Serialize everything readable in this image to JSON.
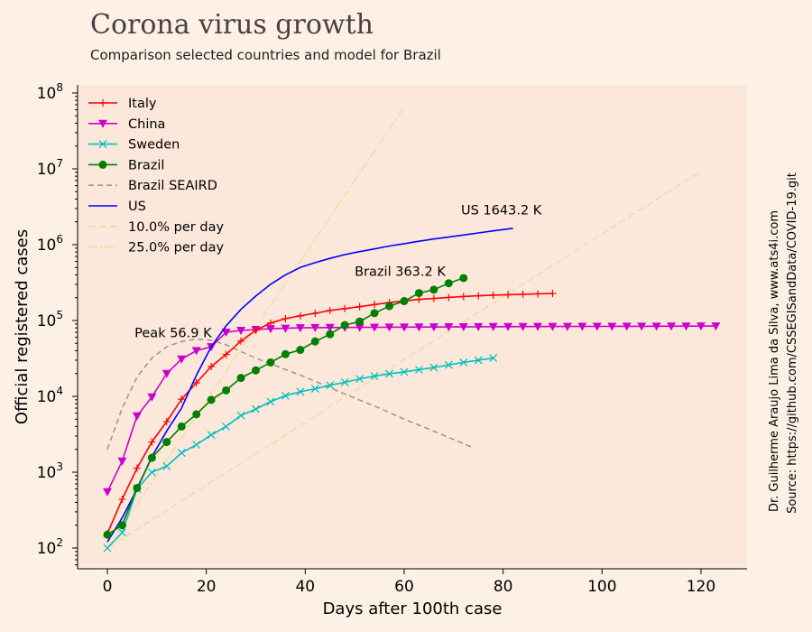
{
  "page": {
    "title": "Corona virus growth",
    "subtitle": "Comparison selected countries and model for Brazil",
    "credit_line1": "Dr. Guilherme Araujo Lima da Silva, www.ats4i.com",
    "credit_line2": "Source: https://github.com/CSSEGISandData/COVID-19.git"
  },
  "colors": {
    "background": "#fdf1e6",
    "plot_bg": "#fbe8da"
  },
  "chart_data": {
    "type": "line",
    "title": "Corona virus growth",
    "subtitle": "Comparison selected countries and model for Brazil",
    "xlabel": "Days after 100th case",
    "ylabel": "Official registered cases",
    "xlim": [
      -6,
      130
    ],
    "ylim": [
      50,
      100000000
    ],
    "yscale": "log",
    "xticks": [
      0,
      20,
      40,
      60,
      80,
      100,
      120
    ],
    "yticks": [
      {
        "value": 100,
        "base": "10",
        "exp": "2"
      },
      {
        "value": 1000,
        "base": "10",
        "exp": "3"
      },
      {
        "value": 10000,
        "base": "10",
        "exp": "4"
      },
      {
        "value": 100000,
        "base": "10",
        "exp": "5"
      },
      {
        "value": 1000000,
        "base": "10",
        "exp": "6"
      },
      {
        "value": 10000000,
        "base": "10",
        "exp": "7"
      },
      {
        "value": 100000000,
        "base": "10",
        "exp": "8"
      }
    ],
    "grid": false,
    "legend_position": "top-left",
    "series": [
      {
        "name": "Italy",
        "color": "#ff0000",
        "marker": "plus",
        "dash": "",
        "x": [
          0,
          3,
          6,
          9,
          12,
          15,
          18,
          21,
          24,
          27,
          30,
          33,
          36,
          39,
          42,
          45,
          48,
          51,
          54,
          57,
          60,
          63,
          66,
          69,
          72,
          75,
          78,
          81,
          84,
          87,
          90
        ],
        "y": [
          155,
          440,
          1130,
          2500,
          4650,
          9170,
          15100,
          24700,
          35700,
          53600,
          74400,
          92500,
          105800,
          115200,
          124600,
          135600,
          143600,
          152300,
          162500,
          172400,
          181200,
          189900,
          195400,
          201500,
          207400,
          211900,
          215800,
          219100,
          222100,
          224800,
          227000
        ]
      },
      {
        "name": "China",
        "color": "#cc00cc",
        "marker": "tri-down",
        "dash": "",
        "x": [
          0,
          3,
          6,
          9,
          12,
          15,
          18,
          21,
          24,
          27,
          30,
          33,
          36,
          39,
          42,
          45,
          48,
          51,
          54,
          57,
          60,
          63,
          66,
          69,
          72,
          75,
          78,
          81,
          84,
          87,
          90,
          93,
          96,
          99,
          102,
          105,
          108,
          111,
          114,
          117,
          120,
          123
        ],
        "y": [
          550,
          1400,
          5500,
          9800,
          20000,
          31000,
          40000,
          45000,
          70000,
          74000,
          76000,
          78000,
          79000,
          80000,
          80500,
          80800,
          81000,
          81200,
          81400,
          81600,
          81800,
          82000,
          82200,
          82400,
          82600,
          82800,
          83000,
          83100,
          83200,
          83300,
          83400,
          83500,
          83600,
          83700,
          83800,
          83900,
          84000,
          84100,
          84200,
          84300,
          84400,
          84500
        ]
      },
      {
        "name": "Sweden",
        "color": "#00bfbf",
        "marker": "x",
        "dash": "",
        "x": [
          0,
          3,
          6,
          9,
          12,
          15,
          18,
          21,
          24,
          27,
          30,
          33,
          36,
          39,
          42,
          45,
          48,
          51,
          54,
          57,
          60,
          63,
          66,
          69,
          72,
          75,
          78
        ],
        "y": [
          100,
          160,
          600,
          1000,
          1200,
          1800,
          2300,
          3100,
          4000,
          5600,
          6800,
          8500,
          10200,
          11500,
          12600,
          14000,
          15300,
          17000,
          18500,
          19800,
          21000,
          22500,
          24000,
          26000,
          28000,
          30000,
          32000
        ]
      },
      {
        "name": "Brazil",
        "color": "#008000",
        "marker": "circle",
        "dash": "",
        "x": [
          0,
          3,
          6,
          9,
          12,
          15,
          18,
          21,
          24,
          27,
          30,
          33,
          36,
          39,
          42,
          45,
          48,
          51,
          54,
          57,
          60,
          63,
          66,
          69,
          72
        ],
        "y": [
          150,
          200,
          620,
          1550,
          2500,
          4000,
          5800,
          9000,
          12000,
          17500,
          22000,
          28000,
          36000,
          41000,
          53000,
          66000,
          87000,
          97000,
          125000,
          155000,
          180000,
          230000,
          255000,
          310000,
          363200
        ]
      },
      {
        "name": "Brazil SEAIRD",
        "color": "#999999",
        "marker": "",
        "dash": "6,4",
        "x": [
          0,
          3,
          6,
          9,
          12,
          15,
          18,
          21,
          24,
          27,
          30,
          35,
          40,
          45,
          50,
          55,
          60,
          65,
          70,
          74
        ],
        "y": [
          2000,
          7000,
          18000,
          32000,
          45000,
          53000,
          56900,
          55000,
          48000,
          39000,
          32000,
          24000,
          18000,
          13000,
          9500,
          7000,
          5000,
          3700,
          2700,
          2100
        ]
      },
      {
        "name": "US",
        "color": "#0000ff",
        "marker": "",
        "dash": "",
        "x": [
          0,
          3,
          6,
          9,
          12,
          15,
          18,
          21,
          24,
          27,
          30,
          33,
          36,
          39,
          42,
          45,
          48,
          51,
          54,
          57,
          60,
          63,
          66,
          69,
          72,
          75,
          78,
          82
        ],
        "y": [
          120,
          250,
          600,
          1600,
          3500,
          7000,
          19000,
          45000,
          85000,
          140000,
          210000,
          300000,
          400000,
          500000,
          580000,
          660000,
          740000,
          810000,
          880000,
          960000,
          1030000,
          1110000,
          1190000,
          1260000,
          1340000,
          1430000,
          1520000,
          1643200
        ]
      },
      {
        "name": "10.0% per day",
        "color": "#f0dc9a",
        "marker": "",
        "dash": "8,4",
        "x": [
          0,
          120
        ],
        "y": [
          100,
          9300000
        ]
      },
      {
        "name": "25.0% per day",
        "color": "#f0dc9a",
        "marker": "",
        "dash": "10,3,2,3",
        "x": [
          0,
          60
        ],
        "y": [
          100,
          65000000
        ]
      }
    ],
    "annotations": [
      {
        "text": "Peak 56.9 K",
        "x": 5.5,
        "y": 60000
      },
      {
        "text": "Brazil 363.2 K",
        "x": 50,
        "y": 390000
      },
      {
        "text": "US 1643.2 K",
        "x": 71.5,
        "y": 2500000
      }
    ]
  }
}
